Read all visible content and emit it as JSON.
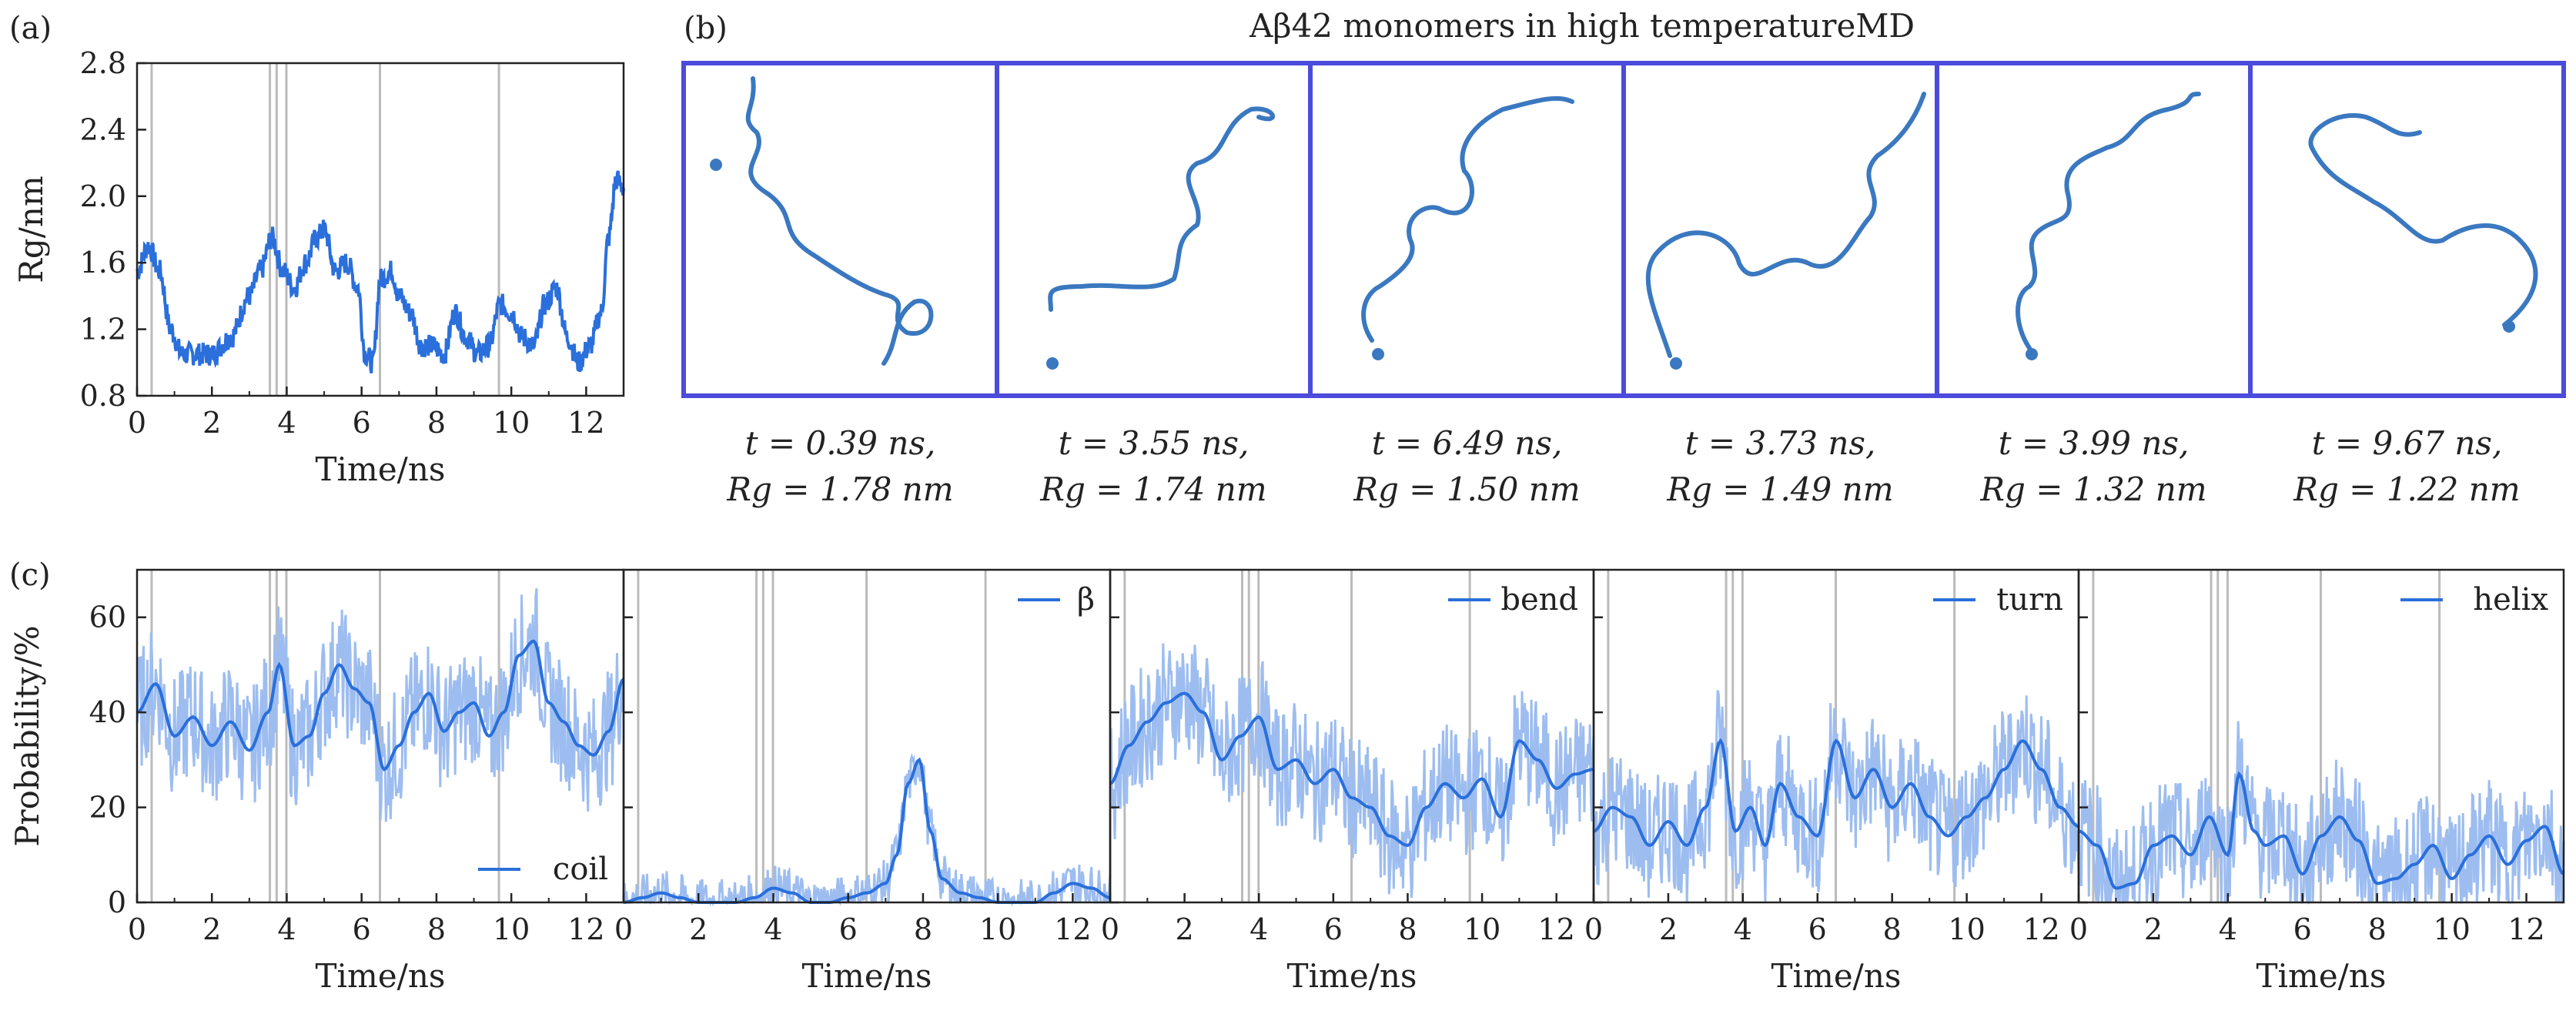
{
  "figure": {
    "panel_labels": [
      "(a)",
      "(b)",
      "(c)"
    ]
  },
  "colors": {
    "line": "#2a6fdb",
    "line_light": "#9dbdf0",
    "frame_blue": "#4b4bdc",
    "marker_gray": "#bbbbbb",
    "axis": "#222222",
    "protein": "#3a78c0"
  },
  "panel_b": {
    "title": "Aβ42 monomers in high temperatureMD",
    "frames": [
      {
        "t_label": "t = 0.39 ns,",
        "rg_label": "Rg = 1.78 nm"
      },
      {
        "t_label": "t = 3.55 ns,",
        "rg_label": "Rg = 1.74 nm"
      },
      {
        "t_label": "t = 6.49 ns,",
        "rg_label": "Rg = 1.50 nm"
      },
      {
        "t_label": "t = 3.73 ns,",
        "rg_label": "Rg = 1.49 nm"
      },
      {
        "t_label": "t = 3.99 ns,",
        "rg_label": "Rg = 1.32 nm"
      },
      {
        "t_label": "t = 9.67 ns,",
        "rg_label": "Rg = 1.22 nm"
      }
    ],
    "icons": [
      "protein-structure-icon"
    ]
  },
  "chart_data": [
    {
      "id": "a",
      "type": "line",
      "xlabel": "Time/ns",
      "ylabel": "Rg/nm",
      "xlim": [
        0,
        13
      ],
      "ylim": [
        0.8,
        2.8
      ],
      "xticks": [
        0,
        2,
        4,
        6,
        8,
        10,
        12
      ],
      "yticks": [
        0.8,
        1.2,
        1.6,
        2.0,
        2.4,
        2.8
      ],
      "ytick_labels": [
        "0.8",
        "1.2",
        "1.6",
        "2.0",
        "2.4",
        "2.8"
      ],
      "markers_x": [
        0.39,
        3.55,
        3.73,
        3.99,
        6.49,
        9.67
      ],
      "grid": false,
      "series": [
        {
          "x": [
            0,
            0.3,
            0.6,
            0.9,
            1.2,
            1.5,
            2,
            2.5,
            3,
            3.3,
            3.6,
            3.9,
            4.2,
            4.5,
            4.8,
            5.0,
            5.3,
            5.6,
            5.9,
            6.1,
            6.3,
            6.5,
            6.8,
            7.0,
            7.3,
            7.6,
            7.9,
            8.2,
            8.5,
            8.8,
            9.1,
            9.4,
            9.7,
            10.0,
            10.3,
            10.6,
            10.9,
            11.2,
            11.5,
            11.8,
            12.1,
            12.4,
            12.6,
            12.8,
            13.0
          ],
          "values": [
            1.55,
            1.7,
            1.55,
            1.2,
            1.05,
            1.05,
            1.05,
            1.15,
            1.4,
            1.55,
            1.75,
            1.55,
            1.45,
            1.6,
            1.75,
            1.8,
            1.55,
            1.6,
            1.45,
            1.05,
            1.0,
            1.5,
            1.55,
            1.4,
            1.3,
            1.1,
            1.1,
            1.05,
            1.3,
            1.15,
            1.05,
            1.1,
            1.35,
            1.3,
            1.15,
            1.1,
            1.35,
            1.45,
            1.15,
            1.0,
            1.1,
            1.3,
            1.75,
            2.1,
            2.05
          ]
        }
      ]
    },
    {
      "id": "c-coil",
      "type": "line",
      "xlabel": "Time/ns",
      "ylabel": "Probability/%",
      "xlim": [
        0,
        13
      ],
      "ylim": [
        0,
        70
      ],
      "xticks": [
        0,
        2,
        4,
        6,
        8,
        10,
        12
      ],
      "yticks": [
        0,
        20,
        40,
        60
      ],
      "markers_x": [
        0.39,
        3.55,
        3.73,
        3.99,
        6.49,
        9.67
      ],
      "legend": "coil",
      "legend_position": "bottom-right",
      "series": [
        {
          "name": "coil",
          "x": [
            0,
            0.5,
            1,
            1.5,
            2,
            2.5,
            3,
            3.5,
            3.8,
            4.2,
            4.6,
            5,
            5.4,
            5.8,
            6.2,
            6.6,
            7,
            7.4,
            7.8,
            8.2,
            8.6,
            9,
            9.4,
            9.8,
            10.2,
            10.6,
            11,
            11.4,
            11.8,
            12.2,
            12.6,
            13
          ],
          "values": [
            40,
            46,
            35,
            39,
            33,
            38,
            32,
            40,
            50,
            33,
            35,
            44,
            50,
            45,
            42,
            28,
            33,
            40,
            44,
            36,
            40,
            42,
            35,
            40,
            52,
            55,
            42,
            38,
            33,
            31,
            36,
            47
          ]
        }
      ]
    },
    {
      "id": "c-beta",
      "type": "line",
      "xlabel": "Time/ns",
      "ylabel": "",
      "xlim": [
        0,
        13
      ],
      "ylim": [
        0,
        70
      ],
      "xticks": [
        0,
        2,
        4,
        6,
        8,
        10,
        12
      ],
      "yticks": [
        0,
        20,
        40,
        60
      ],
      "markers_x": [
        0.39,
        3.55,
        3.73,
        3.99,
        6.49,
        9.67
      ],
      "legend": "β",
      "legend_position": "top-right",
      "series": [
        {
          "name": "β",
          "x": [
            0,
            0.5,
            1,
            1.5,
            2,
            2.5,
            3,
            3.5,
            4,
            4.5,
            5,
            5.5,
            6,
            6.5,
            7,
            7.3,
            7.6,
            7.9,
            8.2,
            8.5,
            9,
            9.5,
            10,
            10.5,
            11,
            11.5,
            12,
            12.5,
            13
          ],
          "values": [
            0,
            1,
            2,
            1,
            0,
            0,
            0,
            1,
            3,
            2,
            0,
            0,
            1,
            2,
            4,
            10,
            25,
            30,
            15,
            5,
            2,
            1,
            0,
            0,
            0,
            2,
            4,
            3,
            1
          ]
        }
      ]
    },
    {
      "id": "c-bend",
      "type": "line",
      "xlabel": "Time/ns",
      "ylabel": "",
      "xlim": [
        0,
        13
      ],
      "ylim": [
        0,
        70
      ],
      "xticks": [
        0,
        2,
        4,
        6,
        8,
        10,
        12
      ],
      "yticks": [
        0,
        20,
        40,
        60
      ],
      "markers_x": [
        0.39,
        3.55,
        3.73,
        3.99,
        6.49,
        9.67
      ],
      "legend": "bend",
      "legend_position": "top-right",
      "series": [
        {
          "name": "bend",
          "x": [
            0,
            0.5,
            1,
            1.5,
            2,
            2.5,
            3,
            3.5,
            4,
            4.5,
            5,
            5.5,
            6,
            6.5,
            7,
            7.5,
            8,
            8.5,
            9,
            9.5,
            10,
            10.5,
            11,
            11.5,
            12,
            12.5,
            13
          ],
          "values": [
            25,
            33,
            38,
            42,
            44,
            40,
            30,
            35,
            39,
            28,
            30,
            25,
            28,
            22,
            20,
            14,
            12,
            20,
            25,
            22,
            26,
            18,
            34,
            30,
            24,
            27,
            28
          ]
        }
      ]
    },
    {
      "id": "c-turn",
      "type": "line",
      "xlabel": "Time/ns",
      "ylabel": "",
      "xlim": [
        0,
        13
      ],
      "ylim": [
        0,
        70
      ],
      "xticks": [
        0,
        2,
        4,
        6,
        8,
        10,
        12
      ],
      "yticks": [
        0,
        20,
        40,
        60
      ],
      "markers_x": [
        0.39,
        3.55,
        3.73,
        3.99,
        6.49,
        9.67
      ],
      "legend": "turn",
      "legend_position": "top-right",
      "series": [
        {
          "name": "turn",
          "x": [
            0,
            0.5,
            1,
            1.5,
            2,
            2.5,
            3,
            3.4,
            3.8,
            4.2,
            4.6,
            5,
            5.5,
            6,
            6.5,
            7,
            7.5,
            8,
            8.5,
            9,
            9.5,
            10,
            10.5,
            11,
            11.5,
            12,
            12.5,
            13
          ],
          "values": [
            15,
            20,
            18,
            12,
            17,
            12,
            20,
            34,
            15,
            20,
            12,
            25,
            18,
            14,
            34,
            22,
            28,
            20,
            25,
            18,
            14,
            18,
            22,
            28,
            34,
            28,
            20,
            16
          ]
        }
      ]
    },
    {
      "id": "c-helix",
      "type": "line",
      "xlabel": "Time/ns",
      "ylabel": "",
      "xlim": [
        0,
        13
      ],
      "ylim": [
        0,
        70
      ],
      "xticks": [
        0,
        2,
        4,
        6,
        8,
        10,
        12
      ],
      "yticks": [
        0,
        20,
        40,
        60
      ],
      "markers_x": [
        0.39,
        3.55,
        3.73,
        3.99,
        6.49,
        9.67
      ],
      "legend": "helix",
      "legend_position": "top-right",
      "series": [
        {
          "name": "helix",
          "x": [
            0,
            0.5,
            1,
            1.5,
            2,
            2.5,
            3,
            3.5,
            4,
            4.3,
            4.7,
            5,
            5.5,
            6,
            6.5,
            7,
            7.5,
            8,
            8.5,
            9,
            9.5,
            10,
            10.5,
            11,
            11.5,
            12,
            12.5,
            13
          ],
          "values": [
            15,
            12,
            3,
            4,
            12,
            14,
            10,
            18,
            10,
            27,
            15,
            12,
            14,
            6,
            14,
            18,
            13,
            4,
            5,
            8,
            12,
            5,
            10,
            14,
            8,
            13,
            16,
            6
          ]
        }
      ]
    }
  ]
}
